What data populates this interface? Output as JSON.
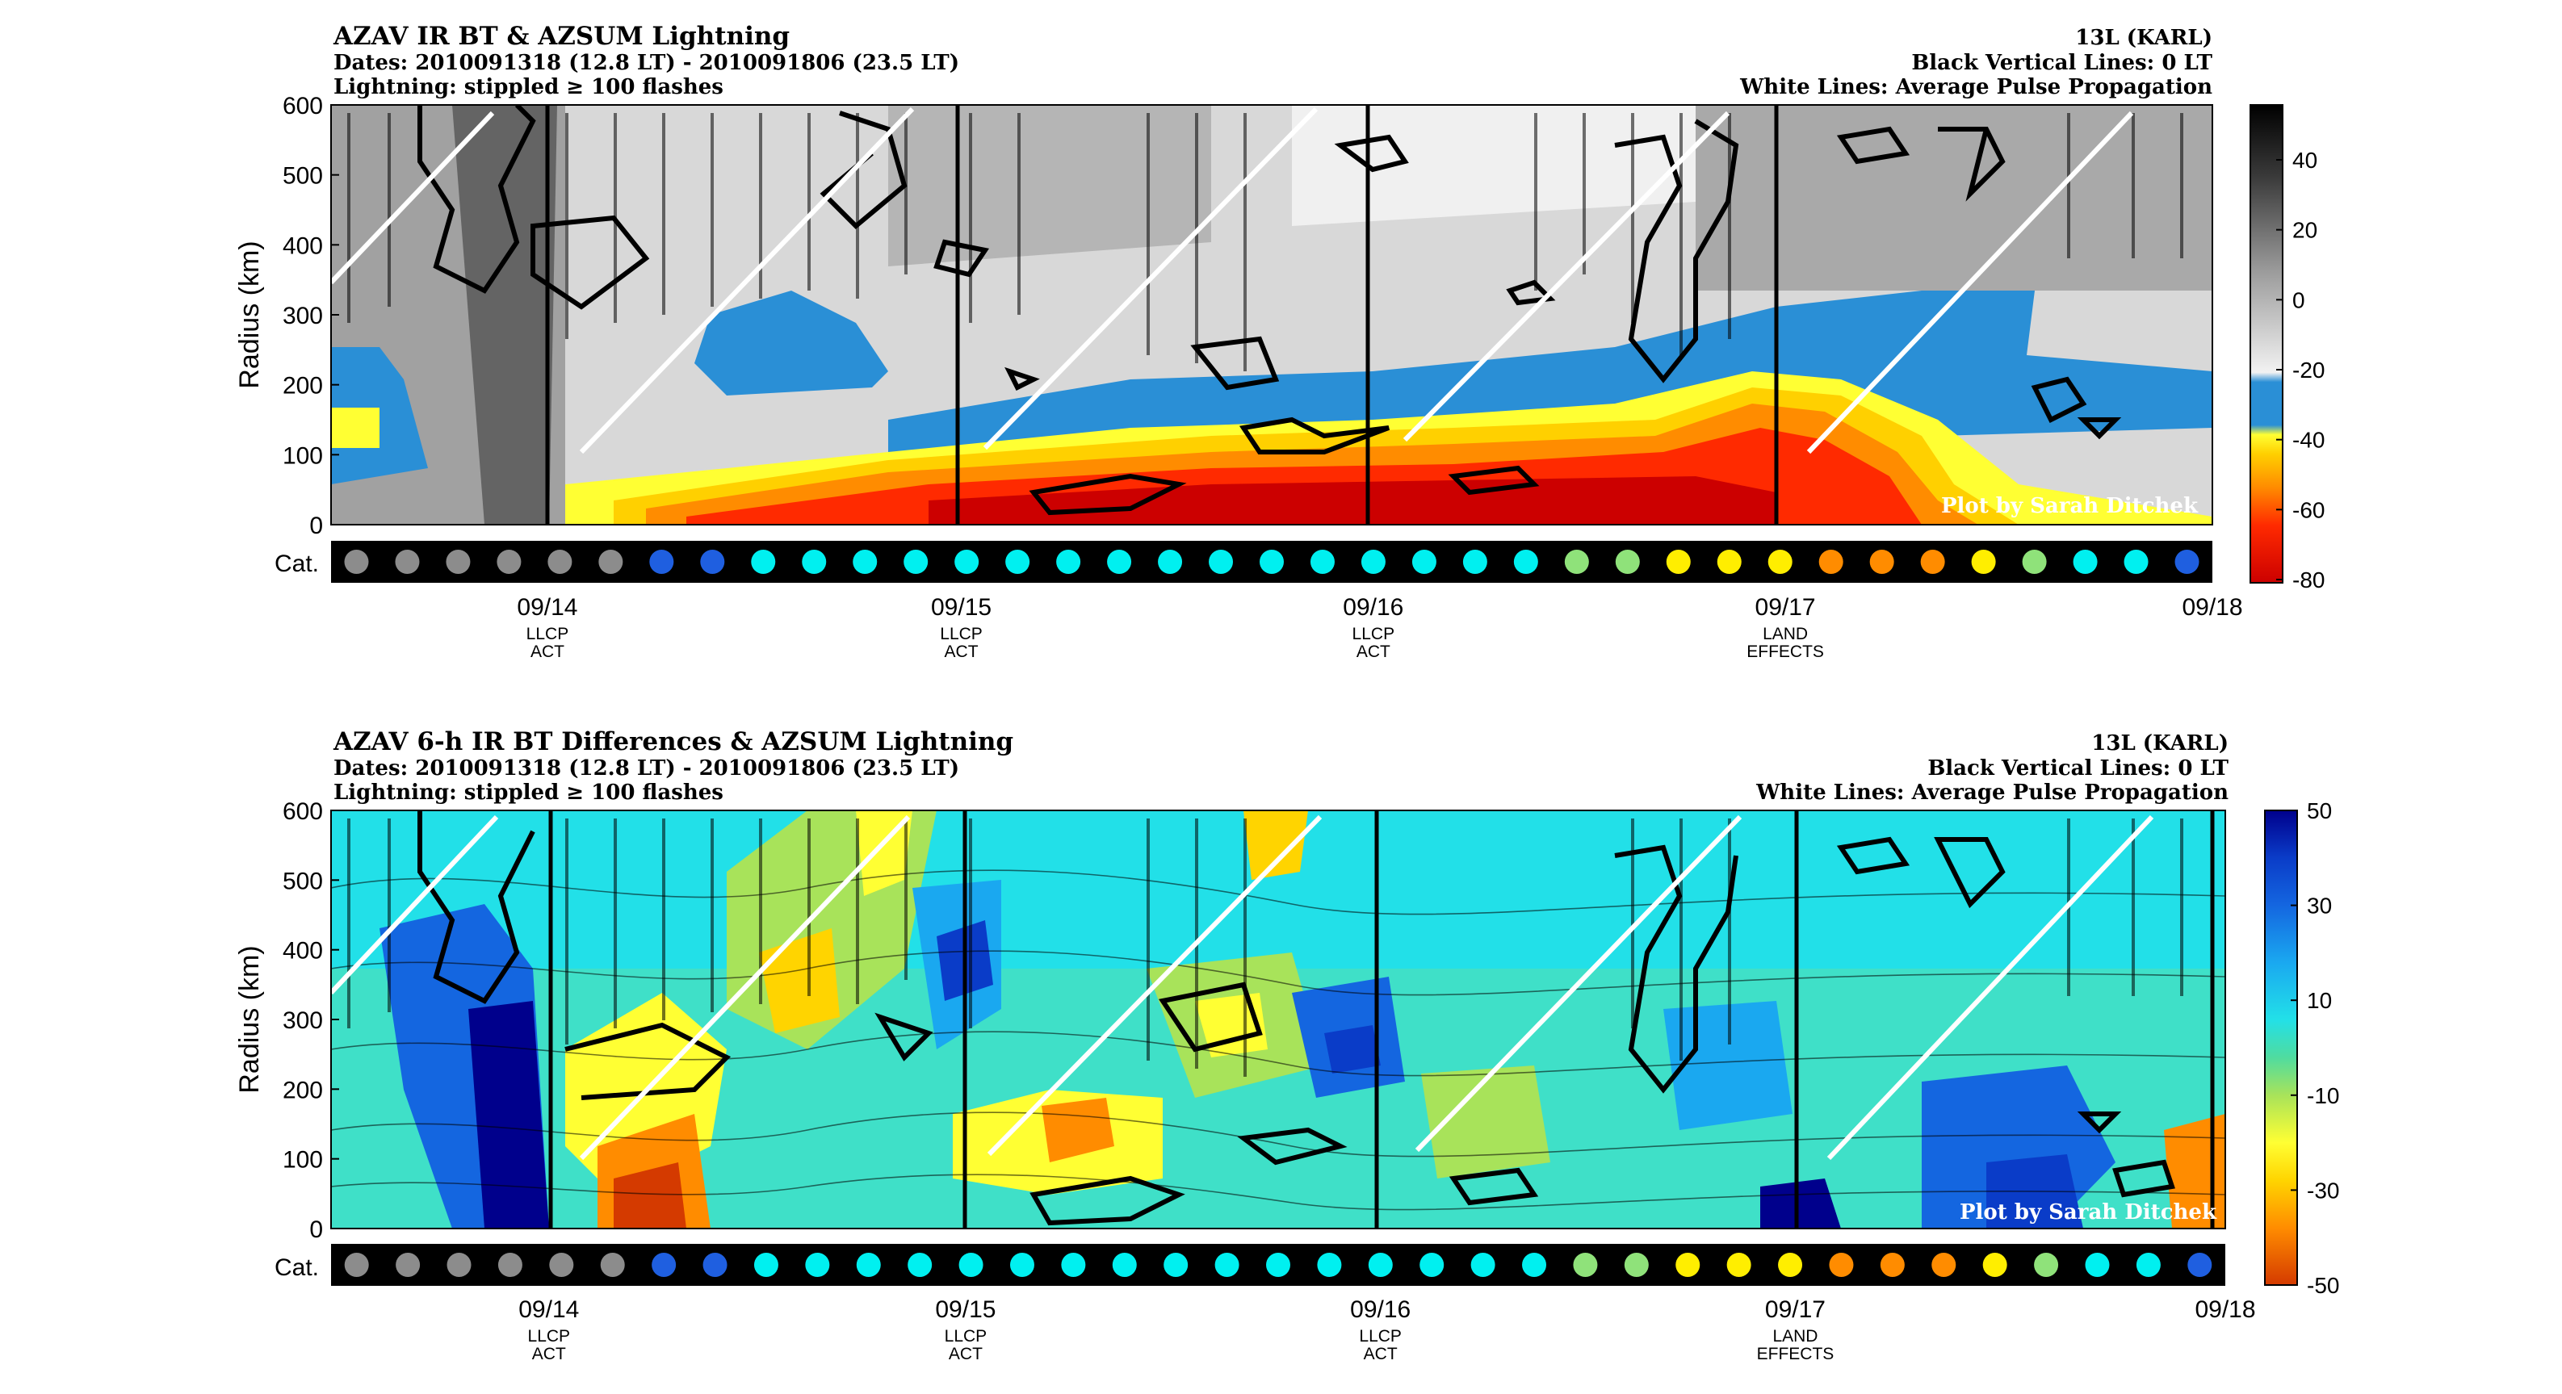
{
  "credit": "Plot by Sarah Ditchek",
  "top_panel": {
    "title": "AZAV IR BT & AZSUM Lightning",
    "dates": "Dates: 2010091318 (12.8 LT) - 2010091806 (23.5 LT)",
    "stipple_note": "Lightning: stippled ≥ 100 flashes",
    "storm": "13L (KARL)",
    "black_lines_note": "Black Vertical Lines: 0 LT",
    "white_lines_note": "White Lines: Average Pulse Propagation",
    "colorbar_ticks": [
      "40",
      "20",
      "0",
      "-20",
      "-40",
      "-60",
      "-80"
    ]
  },
  "bottom_panel": {
    "title": "AZAV 6-h IR BT Differences & AZSUM Lightning",
    "dates": "Dates: 2010091318 (12.8 LT) - 2010091806 (23.5 LT)",
    "stipple_note": "Lightning: stippled ≥ 100 flashes",
    "storm": "13L (KARL)",
    "black_lines_note": "Black Vertical Lines: 0 LT",
    "white_lines_note": "White Lines: Average Pulse Propagation",
    "colorbar_ticks": [
      "50",
      "30",
      "10",
      "-10",
      "-30",
      "-50"
    ]
  },
  "chart_data": {
    "type": "heatmap",
    "ylabel": "Radius (km)",
    "ylim": [
      0,
      600
    ],
    "yticks": [
      "600",
      "500",
      "400",
      "300",
      "200",
      "100",
      "0"
    ],
    "cat_label": "Cat.",
    "xticks": [
      {
        "label": "09/14",
        "sub1": "LLCP",
        "sub2": "ACT",
        "t": 0.115
      },
      {
        "label": "09/15",
        "sub1": "LLCP",
        "sub2": "ACT",
        "t": 0.335
      },
      {
        "label": "09/16",
        "sub1": "LLCP",
        "sub2": "ACT",
        "t": 0.554
      },
      {
        "label": "09/17",
        "sub1": "LAND",
        "sub2": "EFFECTS",
        "t": 0.773
      },
      {
        "label": "09/18",
        "sub1": "",
        "sub2": "",
        "t": 1.0
      }
    ],
    "category_sequence": [
      "TD",
      "TD",
      "TD",
      "TD",
      "TD",
      "TD",
      "TS",
      "TS",
      "C1",
      "C1",
      "C1",
      "C1",
      "C1",
      "C1",
      "C1",
      "C1",
      "C1",
      "C1",
      "C1",
      "C1",
      "C1",
      "C1",
      "C1",
      "C1",
      "C2",
      "C2",
      "C3",
      "C3",
      "C3",
      "C4",
      "C4",
      "C4",
      "C3",
      "C2",
      "C1",
      "C1",
      "TS"
    ],
    "category_colors": {
      "TD": "#8c8c8c",
      "TS": "#1f5fe0",
      "C1": "#00f0f0",
      "C2": "#8fe27a",
      "C3": "#ffee00",
      "C4": "#ff8c00"
    },
    "top_colormap": {
      "range": [
        -80,
        50
      ],
      "colors": [
        "#cc0000",
        "#ff2a00",
        "#ff8c00",
        "#ffd000",
        "#ffff33",
        "#2a8fd6",
        "#e8e8e8",
        "#b0b0b0",
        "#6e6e6e",
        "#2a2a2a",
        "#000000"
      ]
    },
    "bottom_colormap": {
      "range": [
        -50,
        50
      ],
      "colors": [
        "#d43a00",
        "#ff8c00",
        "#ffd400",
        "#ffff33",
        "#a8e35a",
        "#4fdca0",
        "#22e0e8",
        "#1aa8f0",
        "#1466e0",
        "#0a3cc8",
        "#00008c"
      ]
    }
  }
}
